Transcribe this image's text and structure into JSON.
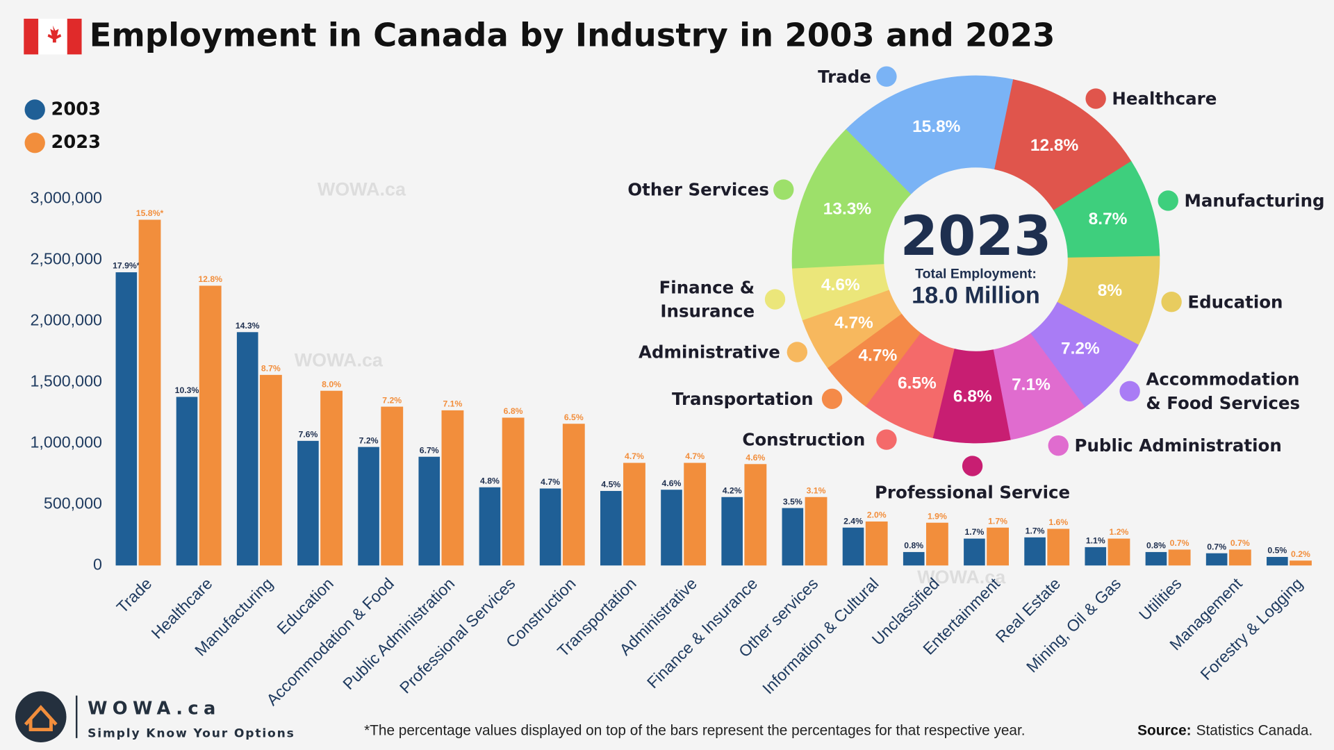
{
  "title": "Employment in Canada by Industry in 2003 and 2023",
  "watermark": "WOWA.ca",
  "footer": {
    "brand": "WOWA.ca",
    "tagline": "Simply Know Your Options",
    "note": "*The percentage values displayed on top of the bars represent the percentages for that respective year.",
    "source_label": "Source:",
    "source": "Statistics Canada."
  },
  "chart_data": [
    {
      "type": "bar",
      "categories": [
        "Trade",
        "Healthcare",
        "Manufacturing",
        "Education",
        "Accommodation & Food",
        "Public Administration",
        "Professional Services",
        "Construction",
        "Transportation",
        "Administrative",
        "Finance & Insurance",
        "Other services",
        "Information & Cultural",
        "Unclassified",
        "Entertainment",
        "Real Estate",
        "Mining, Oil & Gas",
        "Utilities",
        "Management",
        "Forestry & Logging"
      ],
      "series": [
        {
          "name": "2003",
          "color": "#1f5f96",
          "values": [
            2400000,
            1380000,
            1910000,
            1020000,
            970000,
            890000,
            640000,
            630000,
            610000,
            620000,
            560000,
            470000,
            310000,
            110000,
            220000,
            230000,
            150000,
            110000,
            100000,
            70000
          ],
          "share_labels": [
            "17.9%*",
            "10.3%",
            "14.3%",
            "7.6%",
            "7.2%",
            "6.7%",
            "4.8%",
            "4.7%",
            "4.5%",
            "4.6%",
            "4.2%",
            "3.5%",
            "2.4%",
            "0.8%",
            "1.7%",
            "1.7%",
            "1.1%",
            "0.8%",
            "0.7%",
            "0.5%"
          ]
        },
        {
          "name": "2023",
          "color": "#f28e3c",
          "values": [
            2830000,
            2290000,
            1560000,
            1430000,
            1300000,
            1270000,
            1210000,
            1160000,
            840000,
            840000,
            830000,
            560000,
            360000,
            350000,
            310000,
            300000,
            220000,
            130000,
            130000,
            40000
          ],
          "share_labels": [
            "15.8%*",
            "12.8%",
            "8.7%",
            "8.0%",
            "7.2%",
            "7.1%",
            "6.8%",
            "6.5%",
            "4.7%",
            "4.7%",
            "4.6%",
            "3.1%",
            "2.0%",
            "1.9%",
            "1.7%",
            "1.6%",
            "1.2%",
            "0.7%",
            "0.7%",
            "0.2%"
          ]
        }
      ],
      "ylim": [
        0,
        3000000
      ],
      "yticks": [
        0,
        {
          "value": 500000,
          "label": "500,000"
        },
        {
          "value": 1000000,
          "label": "1,000,000"
        },
        {
          "value": 1500000,
          "label": "1,500,000"
        },
        {
          "value": 2000000,
          "label": "2,000,000"
        },
        {
          "value": 2500000,
          "label": "2,500,000"
        },
        {
          "value": 3000000,
          "label": "3,000,000"
        }
      ],
      "grid": false,
      "legend": "top-left"
    },
    {
      "type": "pie",
      "donut": true,
      "center_title": "2023",
      "center_subtitle": "Total Employment:",
      "center_value": "18.0 Million",
      "categories": [
        "Trade",
        "Healthcare",
        "Manufacturing",
        "Education",
        "Accommodation & Food Services",
        "Public Administration",
        "Professional Service",
        "Construction",
        "Transportation",
        "Administrative",
        "Finance & Insurance",
        "Other Services"
      ],
      "values": [
        15.8,
        12.8,
        8.7,
        8,
        7.2,
        7.1,
        6.8,
        6.5,
        4.7,
        4.7,
        4.6,
        13.3
      ],
      "value_labels": [
        "15.8%",
        "12.8%",
        "8.7%",
        "8%",
        "7.2%",
        "7.1%",
        "6.8%",
        "6.5%",
        "4.7%",
        "4.7%",
        "4.6%",
        "13.3%"
      ],
      "colors": [
        "#7ab3f5",
        "#e0554c",
        "#3ecf7d",
        "#e8cc5f",
        "#a97cf5",
        "#e06ccf",
        "#c81e72",
        "#f46a6a",
        "#f48a48",
        "#f7b85e",
        "#ebe67a",
        "#9de06a"
      ]
    }
  ]
}
